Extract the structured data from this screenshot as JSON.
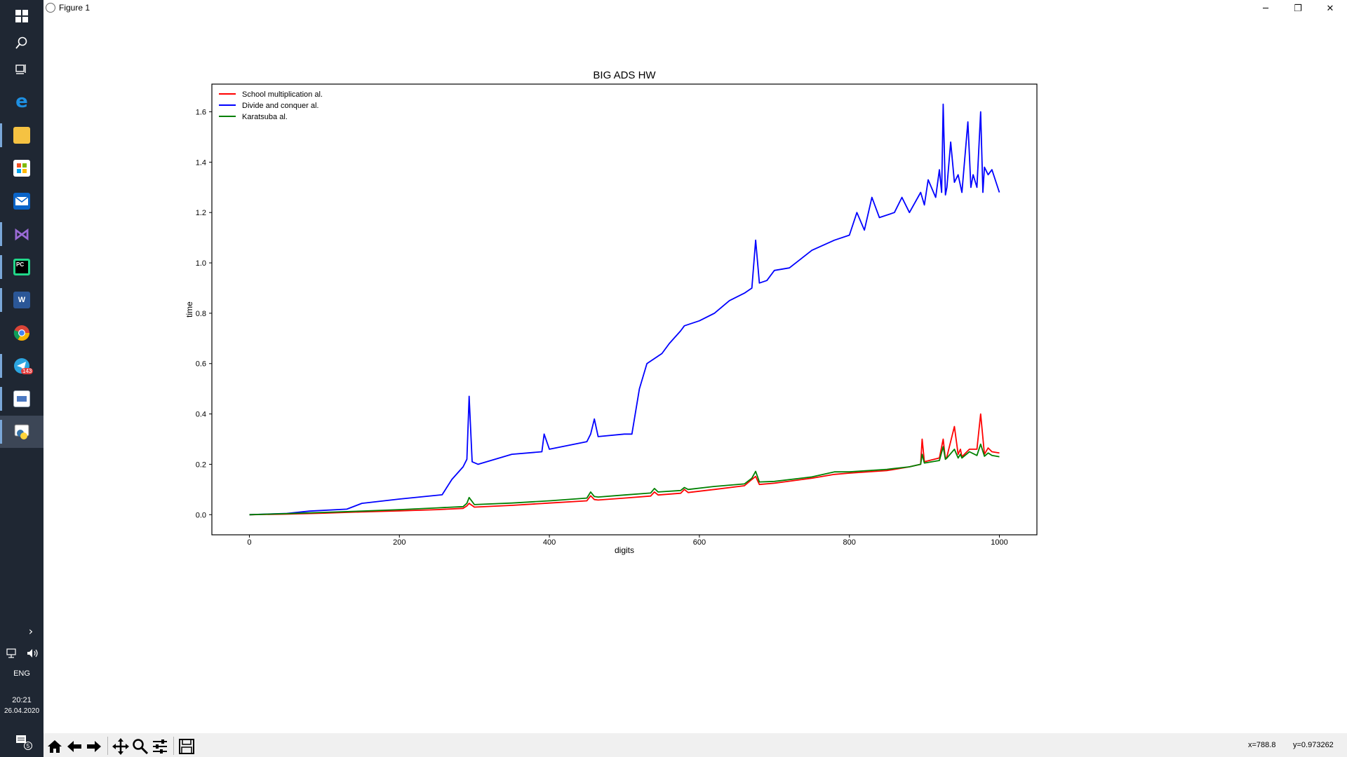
{
  "window": {
    "title": "Figure 1",
    "controls": {
      "minimize": "─",
      "restore": "❐",
      "close": "✕"
    }
  },
  "taskbar": {
    "items": [
      {
        "name": "start",
        "icon": "windows-logo-icon"
      },
      {
        "name": "search",
        "icon": "search-icon"
      },
      {
        "name": "task-view",
        "icon": "task-view-icon"
      },
      {
        "name": "edge",
        "icon": "edge-icon"
      },
      {
        "name": "file-explorer",
        "icon": "folder-icon"
      },
      {
        "name": "store",
        "icon": "store-icon"
      },
      {
        "name": "mail",
        "icon": "mail-icon"
      },
      {
        "name": "visual-studio",
        "icon": "visual-studio-icon"
      },
      {
        "name": "pycharm",
        "icon": "pycharm-icon"
      },
      {
        "name": "word",
        "icon": "word-icon"
      },
      {
        "name": "chrome",
        "icon": "chrome-icon"
      },
      {
        "name": "telegram",
        "icon": "telegram-icon",
        "badge": "143"
      },
      {
        "name": "app",
        "icon": "app-window-icon"
      },
      {
        "name": "python",
        "icon": "python-icon"
      }
    ],
    "tray": {
      "language": "ENG",
      "time": "20:21",
      "date": "26.04.2020",
      "notifications": "5"
    }
  },
  "toolbar": {
    "tools": [
      "home-icon",
      "back-arrow-icon",
      "forward-arrow-icon",
      "pan-icon",
      "zoom-icon",
      "configure-subplots-icon",
      "save-icon"
    ],
    "coords_x": "x=788.8",
    "coords_y": "y=0.973262"
  },
  "chart_data": {
    "type": "line",
    "title": "BIG ADS HW",
    "xlabel": "digits",
    "ylabel": "time",
    "xlim": [
      -50,
      1050
    ],
    "ylim": [
      -0.08,
      1.71
    ],
    "xticks": [
      0,
      200,
      400,
      600,
      800,
      1000
    ],
    "yticks": [
      0.0,
      0.2,
      0.4,
      0.6,
      0.8,
      1.0,
      1.2,
      1.4,
      1.6
    ],
    "legend_position": "top-left",
    "grid": false,
    "series": [
      {
        "name": "School multiplication al.",
        "color": "#ff0000",
        "x": [
          0,
          50,
          100,
          150,
          200,
          250,
          285,
          290,
          293,
          300,
          350,
          400,
          450,
          455,
          460,
          465,
          500,
          535,
          540,
          545,
          575,
          580,
          585,
          620,
          660,
          670,
          675,
          680,
          700,
          750,
          780,
          800,
          850,
          880,
          895,
          897,
          900,
          920,
          925,
          928,
          930,
          940,
          945,
          948,
          950,
          960,
          970,
          975,
          980,
          985,
          990,
          1000
        ],
        "y": [
          0.0,
          0.002,
          0.006,
          0.011,
          0.015,
          0.02,
          0.025,
          0.035,
          0.045,
          0.03,
          0.037,
          0.046,
          0.055,
          0.075,
          0.06,
          0.058,
          0.066,
          0.074,
          0.09,
          0.078,
          0.085,
          0.1,
          0.088,
          0.1,
          0.115,
          0.14,
          0.152,
          0.12,
          0.125,
          0.145,
          0.16,
          0.165,
          0.175,
          0.19,
          0.2,
          0.3,
          0.21,
          0.225,
          0.3,
          0.22,
          0.23,
          0.35,
          0.24,
          0.26,
          0.23,
          0.26,
          0.26,
          0.4,
          0.24,
          0.265,
          0.25,
          0.245
        ]
      },
      {
        "name": "Divide and conquer al.",
        "color": "#0000ff",
        "x": [
          0,
          50,
          80,
          130,
          150,
          200,
          250,
          257,
          270,
          285,
          290,
          293,
          297,
          305,
          350,
          390,
          393,
          400,
          450,
          455,
          460,
          465,
          500,
          510,
          520,
          530,
          550,
          560,
          575,
          580,
          600,
          620,
          640,
          660,
          670,
          675,
          680,
          690,
          700,
          720,
          750,
          780,
          800,
          810,
          820,
          830,
          840,
          860,
          870,
          880,
          895,
          900,
          905,
          915,
          920,
          923,
          925,
          928,
          930,
          935,
          940,
          945,
          950,
          958,
          962,
          965,
          970,
          975,
          978,
          980,
          985,
          990,
          1000
        ],
        "y": [
          0.0,
          0.005,
          0.014,
          0.022,
          0.045,
          0.062,
          0.077,
          0.079,
          0.14,
          0.19,
          0.22,
          0.47,
          0.21,
          0.2,
          0.24,
          0.25,
          0.32,
          0.26,
          0.29,
          0.32,
          0.38,
          0.31,
          0.32,
          0.32,
          0.5,
          0.6,
          0.64,
          0.68,
          0.73,
          0.75,
          0.77,
          0.8,
          0.85,
          0.88,
          0.9,
          1.09,
          0.92,
          0.93,
          0.97,
          0.98,
          1.05,
          1.09,
          1.11,
          1.2,
          1.13,
          1.26,
          1.18,
          1.2,
          1.26,
          1.2,
          1.28,
          1.23,
          1.33,
          1.26,
          1.37,
          1.28,
          1.63,
          1.27,
          1.3,
          1.48,
          1.32,
          1.35,
          1.28,
          1.56,
          1.3,
          1.35,
          1.3,
          1.6,
          1.28,
          1.38,
          1.35,
          1.37,
          1.28
        ]
      },
      {
        "name": "Karatsuba al.",
        "color": "#008000",
        "x": [
          0,
          50,
          100,
          150,
          200,
          250,
          285,
          290,
          293,
          300,
          350,
          400,
          450,
          455,
          460,
          465,
          500,
          535,
          540,
          545,
          575,
          580,
          585,
          620,
          660,
          670,
          675,
          680,
          700,
          750,
          780,
          800,
          850,
          880,
          895,
          897,
          900,
          920,
          925,
          928,
          930,
          940,
          945,
          948,
          950,
          960,
          970,
          975,
          980,
          985,
          990,
          1000
        ],
        "y": [
          0.0,
          0.004,
          0.009,
          0.014,
          0.02,
          0.027,
          0.032,
          0.045,
          0.068,
          0.04,
          0.046,
          0.055,
          0.066,
          0.09,
          0.072,
          0.07,
          0.078,
          0.086,
          0.104,
          0.09,
          0.096,
          0.108,
          0.1,
          0.112,
          0.122,
          0.145,
          0.172,
          0.13,
          0.132,
          0.15,
          0.17,
          0.17,
          0.18,
          0.19,
          0.2,
          0.24,
          0.205,
          0.215,
          0.27,
          0.22,
          0.225,
          0.26,
          0.225,
          0.24,
          0.225,
          0.25,
          0.235,
          0.28,
          0.232,
          0.245,
          0.235,
          0.23
        ]
      }
    ]
  }
}
